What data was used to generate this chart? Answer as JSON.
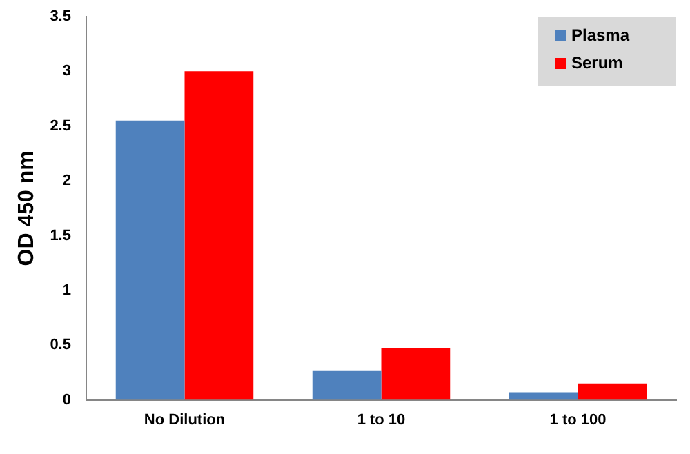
{
  "chart_data": {
    "type": "bar",
    "ylabel": "OD 450 nm",
    "categories": [
      "No Dilution",
      "1 to 10",
      "1 to 100"
    ],
    "series": [
      {
        "name": "Plasma",
        "color": "#4f81bd",
        "values": [
          2.55,
          0.27,
          0.07
        ]
      },
      {
        "name": "Serum",
        "color": "#ff0000",
        "values": [
          3.0,
          0.47,
          0.15
        ]
      }
    ],
    "ylim": [
      0,
      3.5
    ],
    "yticks": [
      0,
      0.5,
      1,
      1.5,
      2,
      2.5,
      3,
      3.5
    ],
    "grid": false,
    "legend": "top right"
  }
}
